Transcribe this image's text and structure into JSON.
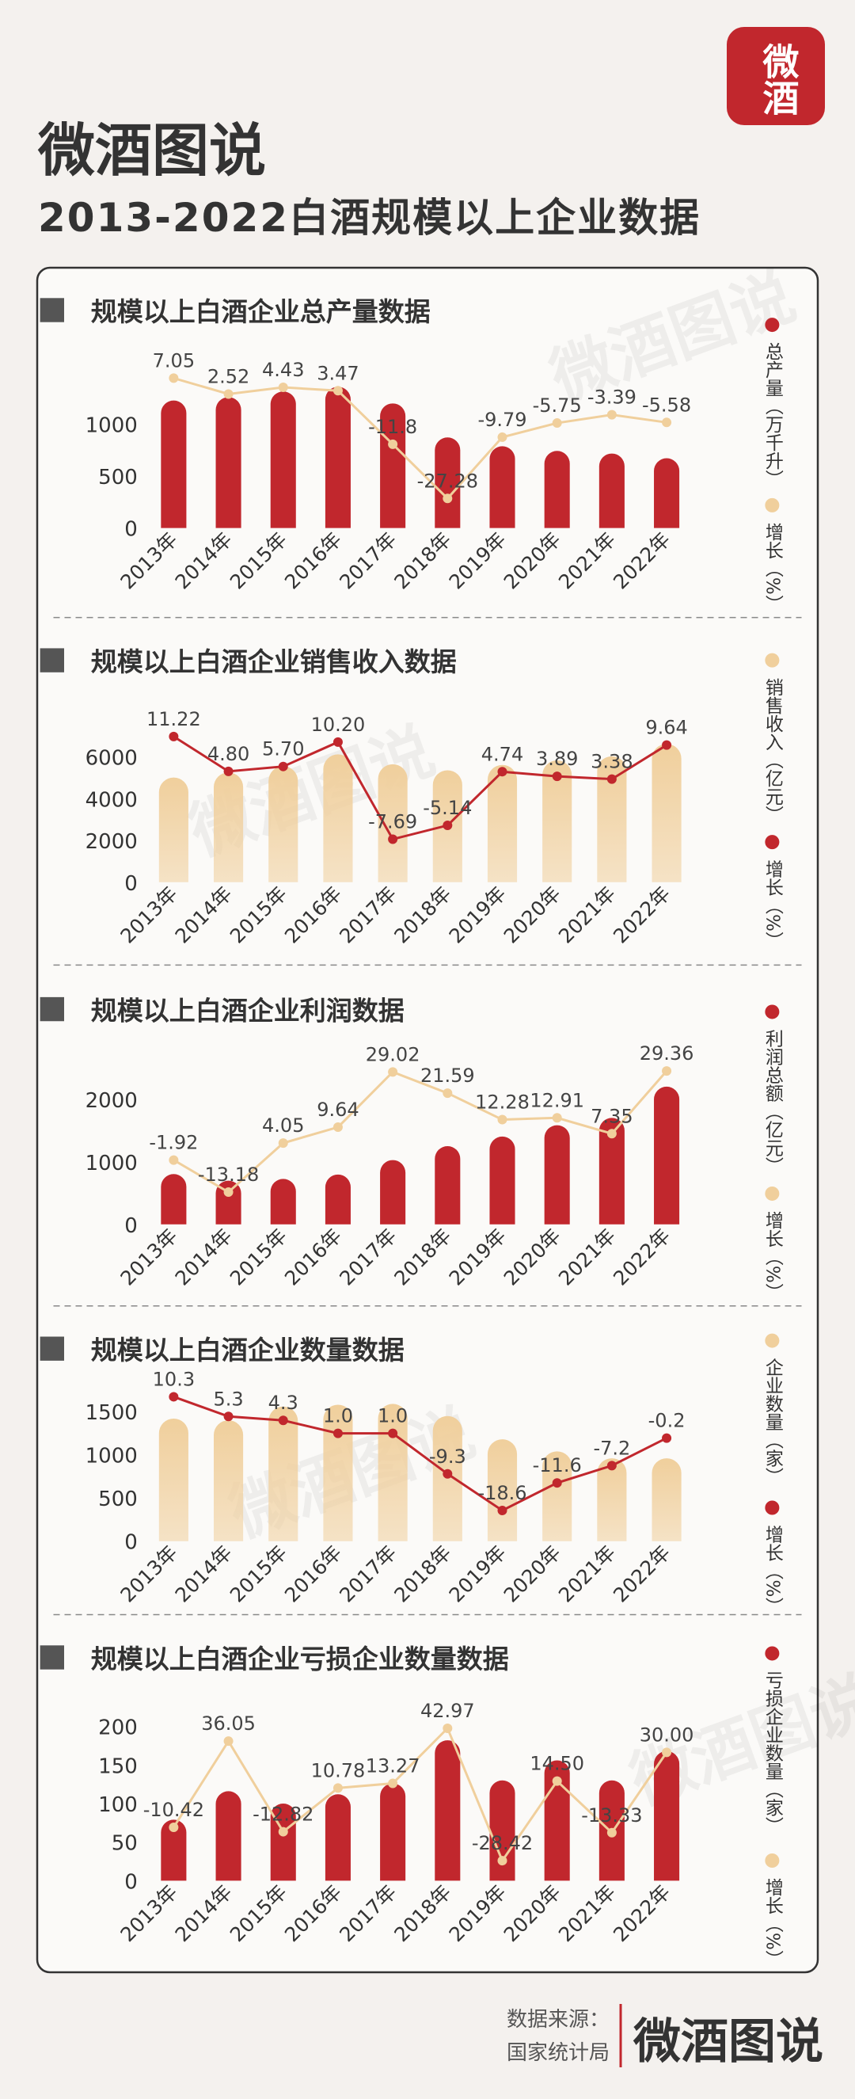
{
  "brand": "微酒图说",
  "badge": "微酒",
  "title": "2013-2022白酒规模以上企业数据",
  "watermark": "微酒图说",
  "source_label": "数据来源：",
  "source": "国家统计局",
  "chart_data": [
    {
      "type": "bar",
      "title": "规模以上白酒企业总产量数据",
      "categories": [
        "2013年",
        "2014年",
        "2015年",
        "2016年",
        "2017年",
        "2018年",
        "2019年",
        "2020年",
        "2021年",
        "2022年"
      ],
      "ylim": [
        0,
        1800
      ],
      "yticks": [
        0,
        500,
        1000
      ],
      "y2lim": [
        -35.7,
        17.7
      ],
      "series": [
        {
          "name": "总产量（万千升）",
          "color": "#c1272d",
          "values": [
            1226,
            1258,
            1313,
            1358,
            1198,
            871,
            786,
            741,
            716,
            671
          ]
        },
        {
          "name": "增长（%）",
          "color": "#f0cf9c",
          "axis": "y2",
          "values": [
            7.05,
            2.52,
            4.43,
            3.47,
            -11.8,
            -27.28,
            -9.79,
            -5.75,
            -3.39,
            -5.58
          ],
          "value_labels": [
            "7.05",
            "2.52",
            "4.43",
            "3.47",
            "-11.8",
            "-27.28",
            "-9.79",
            "-5.75",
            "-3.39",
            "-5.58"
          ]
        }
      ]
    },
    {
      "type": "bar",
      "title": "规模以上白酒企业销售收入数据",
      "categories": [
        "2013年",
        "2014年",
        "2015年",
        "2016年",
        "2017年",
        "2018年",
        "2019年",
        "2020年",
        "2021年",
        "2022年"
      ],
      "ylim": [
        0,
        8200
      ],
      "yticks": [
        0,
        2000,
        4000,
        6000
      ],
      "y2lim": [
        -15.6,
        15.9
      ],
      "series": [
        {
          "name": "销售收入（亿元）",
          "color": "#f0cf9c",
          "values": [
            5018,
            5259,
            5559,
            6126,
            5654,
            5364,
            5618,
            5836,
            6033,
            6627
          ]
        },
        {
          "name": "增长（%）",
          "color": "#c1272d",
          "axis": "y2",
          "values": [
            11.22,
            4.8,
            5.7,
            10.2,
            -7.69,
            -5.14,
            4.74,
            3.89,
            3.38,
            9.64
          ],
          "value_labels": [
            "11.22",
            "4.80",
            "5.70",
            "10.20",
            "-7.69",
            "-5.14",
            "4.74",
            "3.89",
            "3.38",
            "9.64"
          ]
        }
      ]
    },
    {
      "type": "bar",
      "title": "规模以上白酒企业利润数据",
      "categories": [
        "2013年",
        "2014年",
        "2015年",
        "2016年",
        "2017年",
        "2018年",
        "2019年",
        "2020年",
        "2021年",
        "2022年"
      ],
      "ylim": [
        0,
        2800
      ],
      "yticks": [
        0,
        1000,
        2000
      ],
      "y2lim": [
        -24.5,
        37
      ],
      "series": [
        {
          "name": "利润总额（亿元）",
          "color": "#c1272d",
          "values": [
            804,
            698,
            727,
            797,
            1028,
            1251,
            1404,
            1585,
            1702,
            2202
          ]
        },
        {
          "name": "增长（%）",
          "color": "#f0cf9c",
          "axis": "y2",
          "values": [
            -1.92,
            -13.18,
            4.05,
            9.64,
            29.02,
            21.59,
            12.28,
            12.91,
            7.35,
            29.36
          ],
          "value_labels": [
            "-1.92",
            "-13.18",
            "4.05",
            "9.64",
            "29.02",
            "21.59",
            "12.28",
            "12.91",
            "7.35",
            "29.36"
          ]
        }
      ]
    },
    {
      "type": "bar",
      "title": "规模以上白酒企业数量数据",
      "categories": [
        "2013年",
        "2014年",
        "2015年",
        "2016年",
        "2017年",
        "2018年",
        "2019年",
        "2020年",
        "2021年",
        "2022年"
      ],
      "ylim": [
        0,
        1750
      ],
      "yticks": [
        0,
        500,
        1000,
        1500
      ],
      "y2lim": [
        -26.4,
        12
      ],
      "series": [
        {
          "name": "企业数量（家）",
          "color": "#f0cf9c",
          "values": [
            1420,
            1400,
            1560,
            1580,
            1590,
            1450,
            1180,
            1040,
            960,
            960
          ]
        },
        {
          "name": "增长（%）",
          "color": "#c1272d",
          "axis": "y2",
          "values": [
            10.3,
            5.3,
            4.3,
            1.0,
            1.0,
            -9.3,
            -18.6,
            -11.6,
            -7.2,
            -0.2
          ],
          "value_labels": [
            "10.3",
            "5.3",
            "4.3",
            "1.0",
            "1.0",
            "-9.3",
            "-18.6",
            "-11.6",
            "-7.2",
            "-0.2"
          ]
        }
      ]
    },
    {
      "type": "bar",
      "title": "规模以上白酒企业亏损企业数量数据",
      "categories": [
        "2013年",
        "2014年",
        "2015年",
        "2016年",
        "2017年",
        "2018年",
        "2019年",
        "2020年",
        "2021年",
        "2022年"
      ],
      "ylim": [
        0,
        215
      ],
      "yticks": [
        0,
        50,
        100,
        150,
        200
      ],
      "y2lim": [
        -39.2,
        50.2
      ],
      "series": [
        {
          "name": "亏损企业数量（家）",
          "color": "#c1272d",
          "values": [
            79,
            116,
            100,
            112,
            126,
            182,
            130,
            156,
            130,
            168
          ]
        },
        {
          "name": "增长（%）",
          "color": "#f0cf9c",
          "axis": "y2",
          "values": [
            -10.42,
            36.05,
            -12.82,
            10.78,
            13.27,
            42.97,
            -28.42,
            14.5,
            -13.33,
            30.0
          ],
          "value_labels": [
            "-10.42",
            "36.05",
            "-12.82",
            "10.78",
            "13.27",
            "42.97",
            "-28.42",
            "14.50",
            "-13.33",
            "30.00"
          ]
        }
      ]
    }
  ]
}
